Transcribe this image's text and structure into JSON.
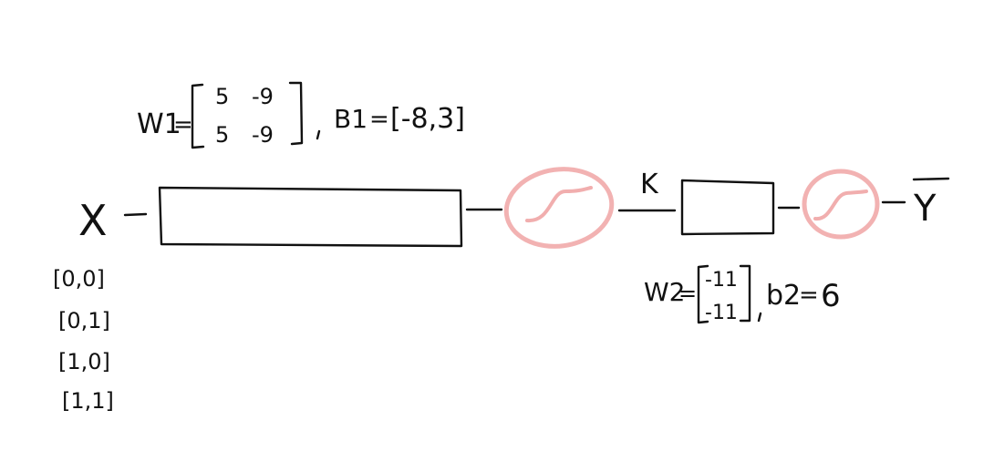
{
  "input": {
    "label": "X",
    "rows": [
      "[0,0]",
      "[0,1]",
      "[1,0]",
      "[1,1]"
    ]
  },
  "layer1": {
    "weight_name": "W1",
    "weight_matrix": [
      [
        "5",
        "-9"
      ],
      [
        "5",
        "-9"
      ]
    ],
    "bias_name": "B1",
    "bias_value": "[-8,3]"
  },
  "hidden": {
    "label": "K"
  },
  "layer2": {
    "weight_name": "W2",
    "weight_matrix": [
      [
        "-11"
      ],
      [
        "-11"
      ]
    ],
    "bias_name": "b2",
    "bias_value": "6"
  },
  "output": {
    "label": "Y"
  },
  "colors": {
    "ink": "#111111",
    "activation": "#f0a5a5"
  }
}
